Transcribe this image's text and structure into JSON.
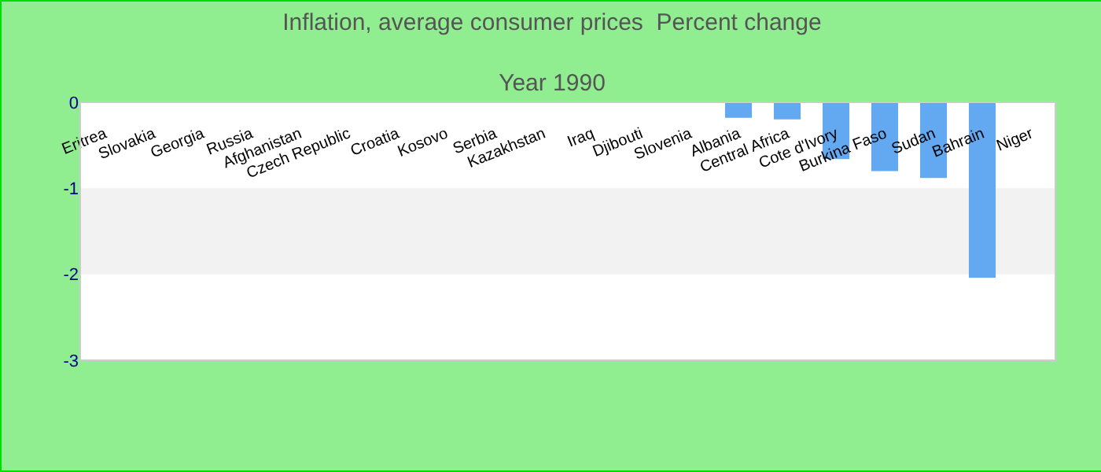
{
  "chart_data": {
    "type": "bar",
    "title": "Inflation, average consumer prices  Percent change",
    "subtitle": "Year 1990",
    "categories": [
      "Eritrea",
      "Slovakia",
      "Georgia",
      "Russia",
      "Afghanistan",
      "Czech Republic",
      "Croatia",
      "Kosovo",
      "Serbia",
      "Kazakhstan",
      "Iraq",
      "Djibouti",
      "Slovenia",
      "Albania",
      "Central Africa",
      "Cote d'Ivory",
      "Burkina Faso",
      "Sudan",
      "Bahrain",
      "Niger"
    ],
    "values": [
      null,
      null,
      null,
      null,
      null,
      null,
      null,
      null,
      null,
      null,
      null,
      null,
      null,
      -0.18,
      -0.2,
      -0.66,
      -0.8,
      -0.88,
      -2.04,
      null
    ],
    "color": "#63a9f2",
    "ylim": [
      -3,
      0
    ],
    "yticks": [
      0,
      -1,
      -2,
      -3
    ],
    "grid": false,
    "bands": [
      {
        "axis": "y",
        "from": -1,
        "to": -2,
        "color": "#f2f2f2"
      }
    ]
  }
}
